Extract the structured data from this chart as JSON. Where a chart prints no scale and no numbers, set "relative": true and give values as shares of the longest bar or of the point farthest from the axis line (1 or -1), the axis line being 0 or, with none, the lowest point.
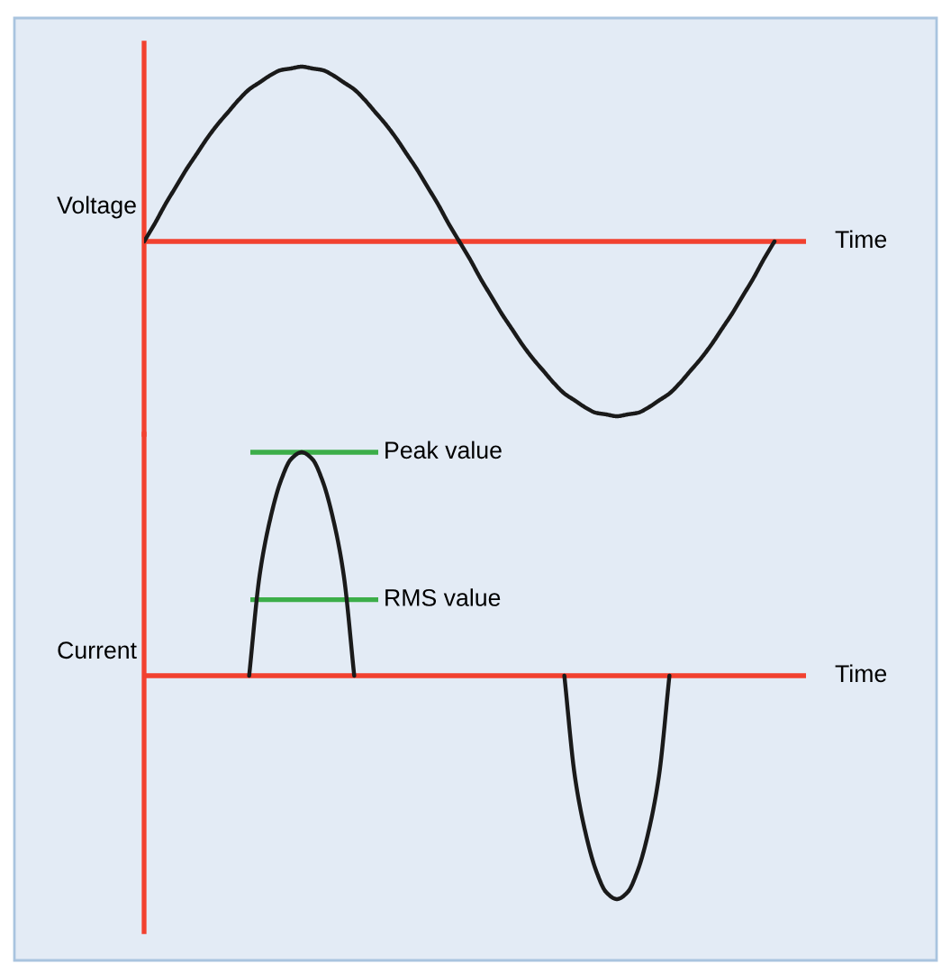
{
  "chart_data": [
    {
      "type": "line",
      "relative": true,
      "ylabel": "Voltage",
      "xlabel": "Time",
      "categories": [
        null,
        null,
        null,
        null,
        null,
        null,
        null,
        null,
        null,
        null,
        null,
        null,
        null,
        null,
        null,
        null,
        null,
        null,
        null,
        null,
        null,
        null,
        null,
        null,
        null,
        null,
        null,
        null,
        null,
        null,
        null,
        null,
        null,
        null,
        null,
        null,
        null,
        null,
        null,
        null,
        null,
        null,
        null,
        null,
        null,
        null,
        null,
        null,
        null,
        null,
        null,
        null,
        null,
        null,
        null,
        null,
        null,
        null,
        null,
        null,
        null,
        null,
        null,
        null
      ],
      "series": [
        {
          "color": "#1a1a1a",
          "values": [
            0,
            0.1,
            0.21,
            0.31,
            0.41,
            0.5,
            0.59,
            0.67,
            0.74,
            0.81,
            0.87,
            0.91,
            0.95,
            0.98,
            0.99,
            1,
            0.99,
            0.98,
            0.95,
            0.91,
            0.87,
            0.81,
            0.74,
            0.67,
            0.59,
            0.5,
            0.41,
            0.31,
            0.21,
            0.1,
            0,
            -0.1,
            -0.21,
            -0.31,
            -0.41,
            -0.5,
            -0.59,
            -0.67,
            -0.74,
            -0.81,
            -0.87,
            -0.91,
            -0.95,
            -0.98,
            -0.99,
            -1,
            -0.99,
            -0.98,
            -0.95,
            -0.91,
            -0.87,
            -0.81,
            -0.74,
            -0.67,
            -0.59,
            -0.5,
            -0.41,
            -0.31,
            -0.21,
            -0.1,
            0,
            null,
            null,
            null
          ]
        }
      ],
      "ref_lines": [
        {
          "axis": "y",
          "value": 0,
          "color": "#f2412f"
        }
      ]
    },
    {
      "type": "line",
      "relative": true,
      "ylabel": "Current",
      "xlabel": "Time",
      "categories": [
        null,
        null,
        null,
        null,
        null,
        null,
        null,
        null,
        null,
        null,
        null,
        null,
        null,
        null,
        null,
        null,
        null,
        null,
        null,
        null,
        null,
        null,
        null,
        null,
        null,
        null,
        null,
        null,
        null,
        null,
        null,
        null,
        null,
        null,
        null,
        null,
        null,
        null,
        null,
        null,
        null,
        null,
        null,
        null,
        null,
        null,
        null,
        null,
        null,
        null,
        null,
        null,
        null,
        null,
        null,
        null,
        null,
        null,
        null,
        null,
        null,
        null,
        null,
        null
      ],
      "series": [
        {
          "color": "#1a1a1a",
          "values": [
            null,
            null,
            null,
            null,
            null,
            null,
            null,
            null,
            null,
            null,
            0,
            0.45,
            0.7,
            0.87,
            0.97,
            1,
            0.97,
            0.87,
            0.7,
            0.45,
            0,
            null,
            null,
            null,
            null,
            null,
            null,
            null,
            null,
            null,
            null,
            null,
            null,
            null,
            null,
            null,
            null,
            null,
            null,
            null,
            0,
            -0.45,
            -0.7,
            -0.87,
            -0.97,
            -1,
            -0.97,
            -0.87,
            -0.7,
            -0.45,
            0,
            null,
            null,
            null,
            null,
            null,
            null,
            null,
            null,
            null,
            null,
            null,
            null,
            null
          ]
        }
      ],
      "ref_lines": [
        {
          "axis": "y",
          "value": 0,
          "color": "#f2412f"
        },
        {
          "axis": "y",
          "value": 1,
          "label": "Peak value",
          "color": "#3cae49"
        },
        {
          "axis": "y",
          "value": 0.34,
          "label": "RMS value",
          "color": "#3cae49"
        }
      ]
    }
  ]
}
